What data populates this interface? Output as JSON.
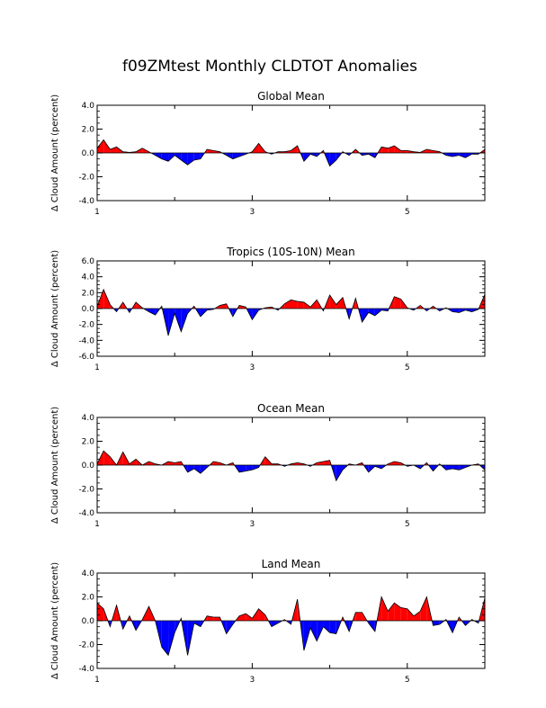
{
  "figure": {
    "title": "f09ZMtest Monthly CLDTOT Anomalies",
    "colors": {
      "positive": "#ff0000",
      "negative": "#0000ff",
      "axis": "#000000"
    }
  },
  "chart_data": [
    {
      "type": "area",
      "title": "Global Mean",
      "ylabel": "Δ Cloud Amount (percent)",
      "xlabel": "",
      "xlim": [
        1,
        6
      ],
      "ylim": [
        -4,
        4
      ],
      "yticks": [
        "4.0",
        "2.0",
        "0.0",
        "-2.0",
        "-4.0"
      ],
      "xticks": [
        "1",
        "3",
        "5"
      ],
      "x": [
        1.0,
        1.083,
        1.167,
        1.25,
        1.333,
        1.417,
        1.5,
        1.583,
        1.667,
        1.75,
        1.833,
        1.917,
        2.0,
        2.083,
        2.167,
        2.25,
        2.333,
        2.417,
        2.5,
        2.583,
        2.667,
        2.75,
        2.833,
        2.917,
        3.0,
        3.083,
        3.167,
        3.25,
        3.333,
        3.417,
        3.5,
        3.583,
        3.667,
        3.75,
        3.833,
        3.917,
        4.0,
        4.083,
        4.167,
        4.25,
        4.333,
        4.417,
        4.5,
        4.583,
        4.667,
        4.75,
        4.833,
        4.917,
        5.0,
        5.083,
        5.167,
        5.25,
        5.333,
        5.417,
        5.5,
        5.583,
        5.667,
        5.75,
        5.833,
        5.917,
        6.0
      ],
      "values": [
        0.4,
        1.1,
        0.3,
        0.5,
        0.1,
        0.05,
        0.1,
        0.4,
        0.1,
        -0.2,
        -0.5,
        -0.7,
        -0.2,
        -0.6,
        -1.0,
        -0.6,
        -0.5,
        0.3,
        0.2,
        0.1,
        -0.2,
        -0.5,
        -0.3,
        -0.1,
        0.1,
        0.8,
        0.1,
        -0.1,
        0.1,
        0.1,
        0.2,
        0.6,
        -0.7,
        -0.1,
        -0.3,
        0.2,
        -1.1,
        -0.6,
        0.1,
        -0.2,
        0.3,
        -0.2,
        -0.1,
        -0.4,
        0.5,
        0.4,
        0.6,
        0.2,
        0.2,
        0.1,
        0.05,
        0.3,
        0.2,
        0.1,
        -0.2,
        -0.3,
        -0.2,
        -0.4,
        -0.1,
        -0.1,
        0.3
      ]
    },
    {
      "type": "area",
      "title": "Tropics (10S-10N) Mean",
      "ylabel": "Δ Cloud Amount (percent)",
      "xlabel": "",
      "xlim": [
        1,
        6
      ],
      "ylim": [
        -6,
        6
      ],
      "yticks": [
        "6.0",
        "4.0",
        "2.0",
        "0.0",
        "-2.0",
        "-4.0",
        "-6.0"
      ],
      "xticks": [
        "1",
        "3",
        "5"
      ],
      "x": [
        1.0,
        1.083,
        1.167,
        1.25,
        1.333,
        1.417,
        1.5,
        1.583,
        1.667,
        1.75,
        1.833,
        1.917,
        2.0,
        2.083,
        2.167,
        2.25,
        2.333,
        2.417,
        2.5,
        2.583,
        2.667,
        2.75,
        2.833,
        2.917,
        3.0,
        3.083,
        3.167,
        3.25,
        3.333,
        3.417,
        3.5,
        3.583,
        3.667,
        3.75,
        3.833,
        3.917,
        4.0,
        4.083,
        4.167,
        4.25,
        4.333,
        4.417,
        4.5,
        4.583,
        4.667,
        4.75,
        4.833,
        4.917,
        5.0,
        5.083,
        5.167,
        5.25,
        5.333,
        5.417,
        5.5,
        5.583,
        5.667,
        5.75,
        5.833,
        5.917,
        6.0
      ],
      "values": [
        0.3,
        2.4,
        0.5,
        -0.4,
        0.8,
        -0.5,
        0.8,
        0.1,
        -0.4,
        -0.8,
        0.3,
        -3.4,
        -0.6,
        -2.9,
        -0.6,
        0.3,
        -1.0,
        -0.2,
        -0.1,
        0.4,
        0.6,
        -1.0,
        0.4,
        0.2,
        -1.4,
        -0.2,
        0.1,
        0.2,
        -0.2,
        0.6,
        1.1,
        0.9,
        0.8,
        0.2,
        1.1,
        -0.3,
        1.7,
        0.5,
        1.4,
        -1.3,
        1.3,
        -1.7,
        -0.5,
        -0.9,
        -0.2,
        -0.3,
        1.5,
        1.2,
        0.1,
        -0.2,
        0.4,
        -0.3,
        0.3,
        -0.3,
        0.1,
        -0.4,
        -0.5,
        -0.2,
        -0.4,
        -0.1,
        1.8
      ]
    },
    {
      "type": "area",
      "title": "Ocean Mean",
      "ylabel": "Δ Cloud Amount (percent)",
      "xlabel": "",
      "xlim": [
        1,
        6
      ],
      "ylim": [
        -4,
        4
      ],
      "yticks": [
        "4.0",
        "2.0",
        "0.0",
        "-2.0",
        "-4.0"
      ],
      "xticks": [
        "1",
        "3",
        "5"
      ],
      "x": [
        1.0,
        1.083,
        1.167,
        1.25,
        1.333,
        1.417,
        1.5,
        1.583,
        1.667,
        1.75,
        1.833,
        1.917,
        2.0,
        2.083,
        2.167,
        2.25,
        2.333,
        2.417,
        2.5,
        2.583,
        2.667,
        2.75,
        2.833,
        2.917,
        3.0,
        3.083,
        3.167,
        3.25,
        3.333,
        3.417,
        3.5,
        3.583,
        3.667,
        3.75,
        3.833,
        3.917,
        4.0,
        4.083,
        4.167,
        4.25,
        4.333,
        4.417,
        4.5,
        4.583,
        4.667,
        4.75,
        4.833,
        4.917,
        5.0,
        5.083,
        5.167,
        5.25,
        5.333,
        5.417,
        5.5,
        5.583,
        5.667,
        5.75,
        5.833,
        5.917,
        6.0
      ],
      "values": [
        0.1,
        1.2,
        0.7,
        0.0,
        1.1,
        0.1,
        0.5,
        0.0,
        0.3,
        0.1,
        0.0,
        0.3,
        0.2,
        0.3,
        -0.6,
        -0.3,
        -0.7,
        -0.2,
        0.3,
        0.2,
        0.0,
        0.2,
        -0.6,
        -0.5,
        -0.4,
        -0.2,
        0.7,
        0.1,
        0.1,
        -0.1,
        0.1,
        0.2,
        0.1,
        -0.1,
        0.2,
        0.3,
        0.4,
        -1.3,
        -0.4,
        0.1,
        0.0,
        0.2,
        -0.6,
        -0.1,
        -0.3,
        0.1,
        0.3,
        0.2,
        -0.1,
        0.0,
        -0.3,
        0.2,
        -0.5,
        0.1,
        -0.4,
        -0.3,
        -0.4,
        -0.2,
        0.0,
        0.1,
        -0.4
      ]
    },
    {
      "type": "area",
      "title": "Land Mean",
      "ylabel": "Δ Cloud Amount (percent)",
      "xlabel": "",
      "xlim": [
        1,
        6
      ],
      "ylim": [
        -4,
        4
      ],
      "yticks": [
        "4.0",
        "2.0",
        "0.0",
        "-2.0",
        "-4.0"
      ],
      "xticks": [
        "1",
        "3",
        "5"
      ],
      "x": [
        1.0,
        1.083,
        1.167,
        1.25,
        1.333,
        1.417,
        1.5,
        1.583,
        1.667,
        1.75,
        1.833,
        1.917,
        2.0,
        2.083,
        2.167,
        2.25,
        2.333,
        2.417,
        2.5,
        2.583,
        2.667,
        2.75,
        2.833,
        2.917,
        3.0,
        3.083,
        3.167,
        3.25,
        3.333,
        3.417,
        3.5,
        3.583,
        3.667,
        3.75,
        3.833,
        3.917,
        4.0,
        4.083,
        4.167,
        4.25,
        4.333,
        4.417,
        4.5,
        4.583,
        4.667,
        4.75,
        4.833,
        4.917,
        5.0,
        5.083,
        5.167,
        5.25,
        5.333,
        5.417,
        5.5,
        5.583,
        5.667,
        5.75,
        5.833,
        5.917,
        6.0
      ],
      "values": [
        1.5,
        1.0,
        -0.5,
        1.3,
        -0.7,
        0.4,
        -0.8,
        0.1,
        1.2,
        0.0,
        -2.2,
        -2.9,
        -1.0,
        0.2,
        -2.9,
        -0.2,
        -0.5,
        0.4,
        0.3,
        0.3,
        -1.1,
        -0.3,
        0.4,
        0.6,
        0.2,
        1.0,
        0.5,
        -0.5,
        -0.2,
        0.1,
        -0.3,
        1.8,
        -2.5,
        -0.6,
        -1.7,
        -0.5,
        -1.0,
        -1.1,
        0.3,
        -0.9,
        0.7,
        0.7,
        -0.2,
        -0.9,
        2.0,
        0.8,
        1.5,
        1.1,
        1.0,
        0.4,
        0.8,
        2.0,
        -0.4,
        -0.3,
        0.1,
        -1.0,
        0.3,
        -0.4,
        0.1,
        -0.2,
        1.9
      ]
    }
  ]
}
